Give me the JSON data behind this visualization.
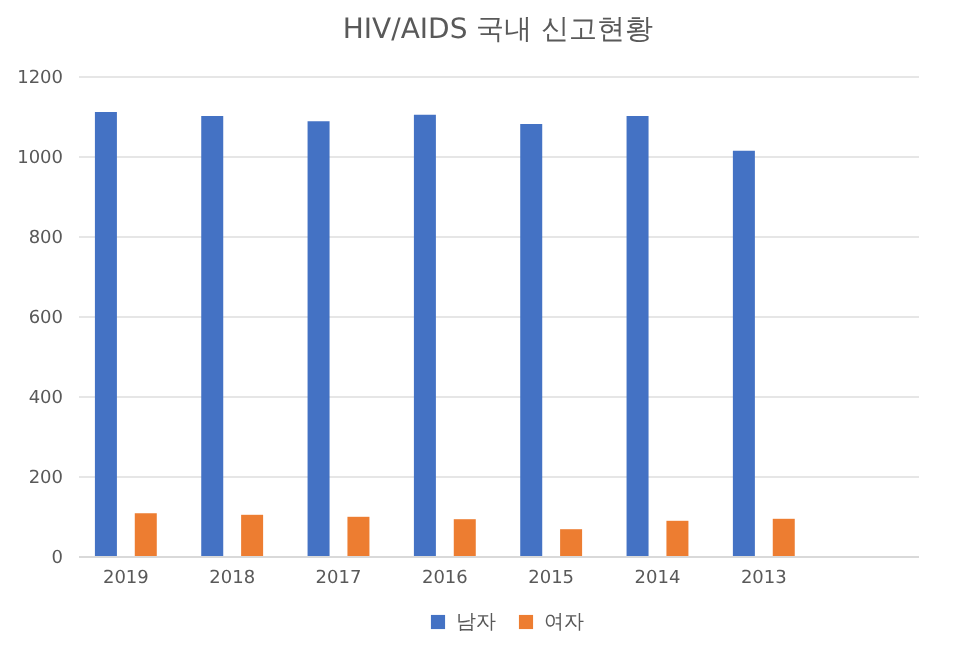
{
  "chart_data": {
    "type": "bar",
    "title": "HIV/AIDS 국내 신고현황",
    "categories": [
      "2019",
      "2018",
      "2017",
      "2016",
      "2015",
      "2014",
      "2013",
      null
    ],
    "series": [
      {
        "name": "남자",
        "color": "#4472c4",
        "values": [
          1110,
          1100,
          1087,
          1103,
          1080,
          1100,
          1013,
          null
        ]
      },
      {
        "name": "여자",
        "color": "#ed7d31",
        "values": [
          107,
          103,
          98,
          92,
          67,
          88,
          93,
          null
        ]
      }
    ],
    "ylim": [
      0,
      1200
    ],
    "yticks": [
      0,
      200,
      400,
      600,
      800,
      1000,
      1200
    ],
    "grid": "y",
    "legend": "bottom"
  }
}
